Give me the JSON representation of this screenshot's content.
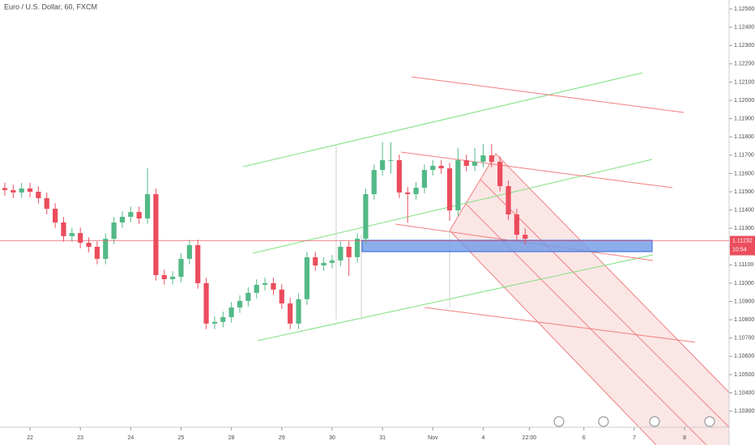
{
  "chart_data": {
    "type": "candlestick",
    "title": "Euro / U.S. Dollar, 60, FXCM",
    "x": [
      -12,
      -8,
      -4,
      0,
      4,
      8,
      12,
      16,
      20,
      24,
      28,
      32,
      36,
      40,
      44,
      48,
      52,
      56,
      60,
      64,
      68,
      72,
      76,
      80,
      84,
      88,
      92,
      96,
      100,
      104,
      108,
      112,
      116,
      120,
      124,
      128,
      132,
      136,
      140,
      144,
      148,
      152,
      156,
      160,
      164,
      168,
      172,
      176,
      180,
      184,
      188,
      192,
      196,
      200,
      204,
      208,
      212,
      216,
      220,
      224,
      228,
      232,
      236
    ],
    "open": [
      1.1152,
      1.11509,
      1.11496,
      1.11518,
      1.115,
      1.11465,
      1.11407,
      1.11332,
      1.11257,
      1.11274,
      1.11221,
      1.11199,
      1.11133,
      1.11243,
      1.11332,
      1.11363,
      1.11389,
      1.11354,
      1.11487,
      1.11044,
      1.11022,
      1.11035,
      1.11133,
      1.11208,
      1.11,
      1.10779,
      1.10788,
      1.10814,
      1.10867,
      1.10903,
      1.10947,
      1.10991,
      1.11,
      1.10965,
      1.10889,
      1.10779,
      1.10912,
      1.11142,
      1.11097,
      1.11111,
      1.11124,
      1.11199,
      1.11142,
      1.11243,
      1.11487,
      1.11619,
      1.11673,
      1.11673,
      1.11496,
      1.11487,
      1.11522,
      1.11619,
      1.11642,
      1.11628,
      1.11398,
      1.11673,
      1.11642,
      1.11664,
      1.11699,
      1.11664,
      1.11531,
      1.11376,
      1.11265
    ],
    "high": [
      1.1155,
      1.11539,
      1.11548,
      1.11548,
      1.1153,
      1.11495,
      1.11437,
      1.11362,
      1.11304,
      1.11304,
      1.11251,
      1.11229,
      1.11273,
      1.11362,
      1.11393,
      1.11419,
      1.11419,
      1.11628,
      1.11517,
      1.11074,
      1.11065,
      1.11163,
      1.11238,
      1.11238,
      1.1103,
      1.10818,
      1.10844,
      1.10897,
      1.10933,
      1.10977,
      1.11021,
      1.1103,
      1.1103,
      1.10995,
      1.10919,
      1.10942,
      1.11172,
      1.11172,
      1.11141,
      1.11154,
      1.11229,
      1.11229,
      1.11273,
      1.11517,
      1.11649,
      1.1177,
      1.1177,
      1.11703,
      1.11526,
      1.11552,
      1.11649,
      1.11672,
      1.11672,
      1.11658,
      1.1174,
      1.11703,
      1.1174,
      1.1176,
      1.1176,
      1.11694,
      1.11561,
      1.11406,
      1.113
    ],
    "low": [
      1.11479,
      1.11466,
      1.11466,
      1.1147,
      1.11435,
      1.11377,
      1.11302,
      1.11227,
      1.11227,
      1.11191,
      1.11169,
      1.11103,
      1.11103,
      1.11213,
      1.11302,
      1.11333,
      1.11324,
      1.11324,
      1.11014,
      1.10992,
      1.10992,
      1.11005,
      1.11103,
      1.1097,
      1.10749,
      1.10749,
      1.10758,
      1.10784,
      1.10837,
      1.10873,
      1.10917,
      1.10961,
      1.10935,
      1.10859,
      1.10749,
      1.10749,
      1.10882,
      1.11067,
      1.11067,
      1.11081,
      1.11094,
      1.1104,
      1.11112,
      1.11213,
      1.11457,
      1.11589,
      1.116,
      1.11466,
      1.1133,
      1.11457,
      1.11492,
      1.11589,
      1.11598,
      1.1134,
      1.11368,
      1.11612,
      1.11612,
      1.11634,
      1.11634,
      1.11501,
      1.11346,
      1.11235,
      1.1121
    ],
    "close": [
      1.11509,
      1.11496,
      1.11518,
      1.115,
      1.11465,
      1.11407,
      1.11332,
      1.11257,
      1.11274,
      1.11221,
      1.11199,
      1.11133,
      1.11243,
      1.11332,
      1.11363,
      1.11389,
      1.11354,
      1.11487,
      1.11044,
      1.11022,
      1.11035,
      1.11133,
      1.11208,
      1.11,
      1.10779,
      1.10788,
      1.10814,
      1.10867,
      1.10903,
      1.10947,
      1.10991,
      1.11,
      1.10965,
      1.10889,
      1.10779,
      1.10912,
      1.11142,
      1.11097,
      1.11111,
      1.11124,
      1.11199,
      1.11142,
      1.11243,
      1.11487,
      1.11619,
      1.11673,
      1.11673,
      1.11496,
      1.11487,
      1.11522,
      1.11619,
      1.11642,
      1.11628,
      1.11398,
      1.11673,
      1.11642,
      1.11664,
      1.11699,
      1.11664,
      1.11531,
      1.11376,
      1.11265,
      1.11243
    ],
    "up_color": "#53b987",
    "down_color": "#eb4d5c",
    "xlim": [
      -14.3,
      333.2
    ],
    "xticks": [
      {
        "value": 0,
        "label": "22"
      },
      {
        "value": 24,
        "label": "23"
      },
      {
        "value": 48,
        "label": "24"
      },
      {
        "value": 72,
        "label": "25"
      },
      {
        "value": 96,
        "label": "28"
      },
      {
        "value": 120,
        "label": "29"
      },
      {
        "value": 144,
        "label": "30"
      },
      {
        "value": 168,
        "label": "31"
      },
      {
        "value": 192,
        "label": "Nov"
      },
      {
        "value": 216,
        "label": "4"
      },
      {
        "value": 238,
        "label": "22:00"
      },
      {
        "value": 264,
        "label": "6"
      },
      {
        "value": 288,
        "label": "7"
      },
      {
        "value": 312,
        "label": "8"
      }
    ],
    "ylim": [
      1.10212,
      1.12549
    ],
    "yticks": [
      {
        "value": 1.103,
        "label": "1.10300"
      },
      {
        "value": 1.104,
        "label": "1.10400"
      },
      {
        "value": 1.105,
        "label": "1.10500"
      },
      {
        "value": 1.106,
        "label": "1.10600"
      },
      {
        "value": 1.107,
        "label": "1.10700"
      },
      {
        "value": 1.108,
        "label": "1.10800"
      },
      {
        "value": 1.109,
        "label": "1.10900"
      },
      {
        "value": 1.11,
        "label": "1.11000"
      },
      {
        "value": 1.111,
        "label": "1.11100"
      },
      {
        "value": 1.112,
        "label": "1.11200"
      },
      {
        "value": 1.113,
        "label": "1.11300"
      },
      {
        "value": 1.114,
        "label": "1.11400"
      },
      {
        "value": 1.115,
        "label": "1.11500"
      },
      {
        "value": 1.116,
        "label": "1.11600"
      },
      {
        "value": 1.117,
        "label": "1.11700"
      },
      {
        "value": 1.118,
        "label": "1.11800"
      },
      {
        "value": 1.119,
        "label": "1.11900"
      },
      {
        "value": 1.12,
        "label": "1.12000"
      },
      {
        "value": 1.121,
        "label": "1.12100"
      },
      {
        "value": 1.122,
        "label": "1.12200"
      },
      {
        "value": 1.123,
        "label": "1.12300"
      },
      {
        "value": 1.124,
        "label": "1.12400"
      },
      {
        "value": 1.125,
        "label": "1.12500"
      }
    ],
    "price_line": {
      "value": 1.11232,
      "label": "1.11232",
      "color": "#eb4d5c"
    },
    "countdown": "10:54"
  }
}
